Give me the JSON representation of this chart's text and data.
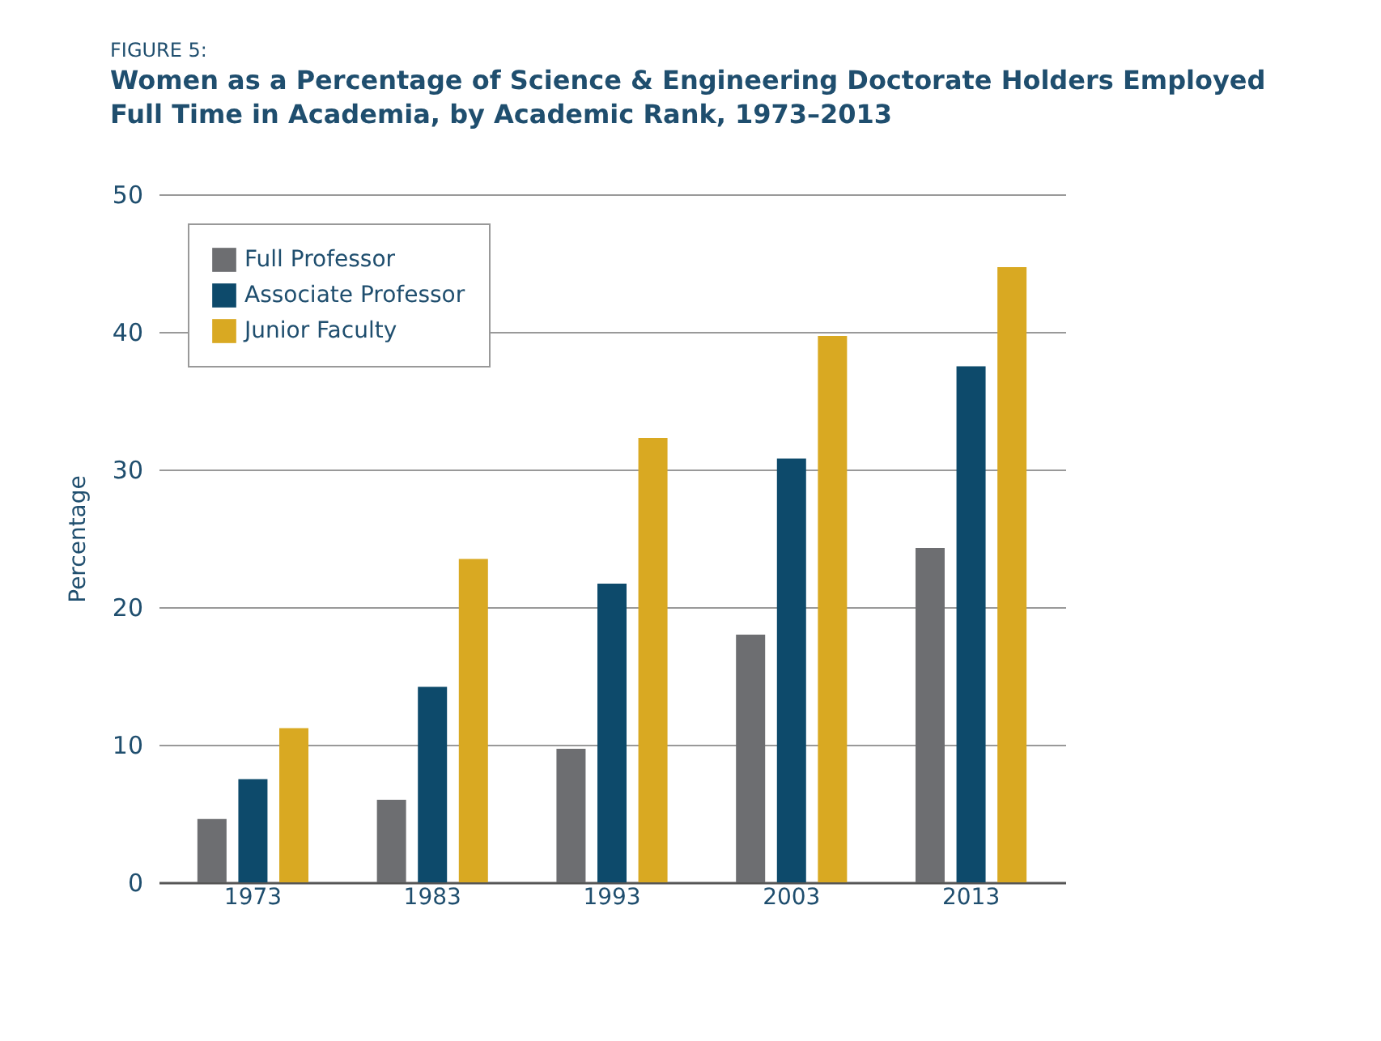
{
  "chart_data": {
    "type": "bar",
    "title": "Women as a Percentage of Science & Engineering Doctorate Holders Employed Full Time in Academia, by Academic Rank, 1973–2013",
    "annotations": [
      "FIGURE 5:"
    ],
    "ylabel": "Percentage",
    "categories": [
      "1973",
      "1983",
      "1993",
      "2003",
      "2013"
    ],
    "series": [
      {
        "name": "Full Professor",
        "color": "#6d6e71",
        "values": [
          4.6,
          6.0,
          9.7,
          18.0,
          24.3
        ]
      },
      {
        "name": "Associate Professor",
        "color": "#0d4a6b",
        "values": [
          7.5,
          14.2,
          21.7,
          30.8,
          37.5
        ]
      },
      {
        "name": "Junior Faculty",
        "color": "#d9a922",
        "values": [
          11.2,
          23.5,
          32.3,
          39.7,
          44.7
        ]
      }
    ],
    "ylim": [
      0,
      50
    ],
    "yticks": [
      0,
      10,
      20,
      30,
      40,
      50
    ],
    "grid": "y",
    "legend": "top left"
  }
}
